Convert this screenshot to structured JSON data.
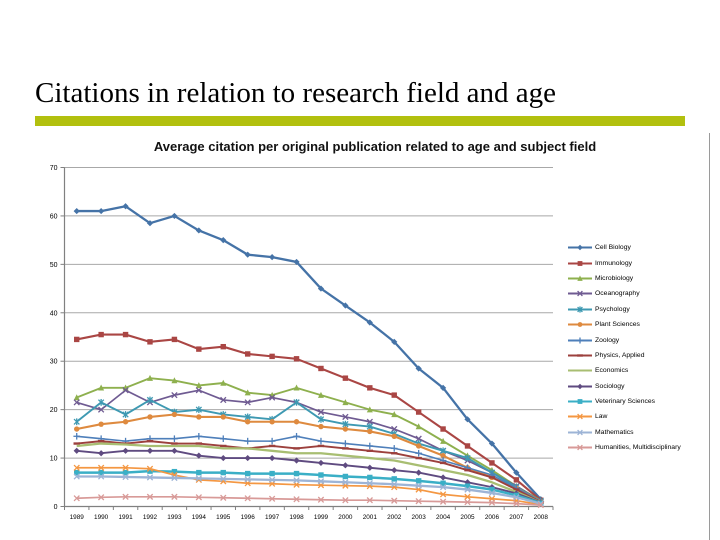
{
  "slide": {
    "title": "Citations in relation to research field and age",
    "accent_bar_color": "#B2C00E"
  },
  "chart_data": {
    "type": "line",
    "title": "Average citation per original publication related to age and subject field",
    "xlabel": "",
    "ylabel": "",
    "x": [
      1989,
      1990,
      1991,
      1992,
      1993,
      1994,
      1995,
      1996,
      1997,
      1998,
      1999,
      2000,
      2001,
      2002,
      2003,
      2004,
      2005,
      2006,
      2007,
      2008
    ],
    "ylim": [
      0,
      70
    ],
    "ytick_step": 10,
    "grid": true,
    "legend_position": "right",
    "axis_color": "#808080",
    "grid_color": "#A8A8A8",
    "series": [
      {
        "name": "Cell Biology",
        "color": "#4573A7",
        "marker": "diamond",
        "values": [
          61,
          61,
          62,
          58.5,
          60,
          57,
          55,
          52,
          51.5,
          50.5,
          45,
          41.5,
          38,
          34,
          28.5,
          24.5,
          18,
          13,
          7,
          1.5
        ]
      },
      {
        "name": "Immunology",
        "color": "#AA4644",
        "marker": "square",
        "values": [
          34.5,
          35.5,
          35.5,
          34,
          34.5,
          32.5,
          33,
          31.5,
          31,
          30.5,
          28.5,
          26.5,
          24.5,
          23,
          19.5,
          16,
          12.5,
          9,
          5.5,
          1.3
        ]
      },
      {
        "name": "Microbiology",
        "color": "#8EB04E",
        "marker": "triangle",
        "values": [
          22.5,
          24.5,
          24.5,
          26.5,
          26,
          25,
          25.5,
          23.5,
          23,
          24.5,
          23,
          21.5,
          20,
          19,
          16.5,
          13.5,
          10.5,
          7.5,
          4.2,
          1.2
        ]
      },
      {
        "name": "Oceanography",
        "color": "#6F5B92",
        "marker": "x",
        "values": [
          21.5,
          20,
          24,
          21.5,
          23,
          24,
          22,
          21.5,
          22.5,
          21.5,
          19.5,
          18.5,
          17.5,
          16,
          14,
          11.5,
          9.5,
          7,
          4.2,
          1.1
        ]
      },
      {
        "name": "Psychology",
        "color": "#3E99B2",
        "marker": "asterisk",
        "values": [
          17.5,
          21.5,
          19,
          22,
          19.5,
          20,
          19,
          18.5,
          18,
          21.5,
          18,
          17,
          16.5,
          15,
          13,
          11.5,
          10,
          7,
          4,
          1.1
        ]
      },
      {
        "name": "Plant Sciences",
        "color": "#DE8A3F",
        "marker": "circle",
        "values": [
          16,
          17,
          17.5,
          18.5,
          19,
          18.5,
          18.5,
          17.5,
          17.5,
          17.5,
          16.5,
          16,
          15.5,
          14.5,
          12.5,
          10.5,
          8,
          6,
          3.8,
          1
        ]
      },
      {
        "name": "Zoology",
        "color": "#4E7FBA",
        "marker": "plus",
        "values": [
          14.5,
          14,
          13.5,
          14,
          14,
          14.5,
          14,
          13.5,
          13.5,
          14.5,
          13.5,
          13,
          12.5,
          12,
          11,
          9.5,
          8,
          6.5,
          3.8,
          1
        ]
      },
      {
        "name": "Physics, Applied",
        "color": "#9C403D",
        "marker": "dash",
        "values": [
          13,
          13.5,
          13,
          13.5,
          13,
          13,
          12.5,
          12,
          12.5,
          12,
          12.5,
          12,
          11.5,
          11,
          10,
          9,
          7.5,
          6,
          3.5,
          0.9
        ]
      },
      {
        "name": "Economics",
        "color": "#A8BE72",
        "marker": "none",
        "values": [
          12.5,
          13,
          12.8,
          12.5,
          12.5,
          12.5,
          12,
          12,
          11.5,
          11,
          11,
          10.5,
          10,
          9.5,
          8.5,
          7.5,
          6.5,
          5,
          3,
          0.8
        ]
      },
      {
        "name": "Sociology",
        "color": "#5F4B80",
        "marker": "diamond",
        "values": [
          11.5,
          11,
          11.5,
          11.5,
          11.5,
          10.5,
          10,
          10,
          10,
          9.5,
          9,
          8.5,
          8,
          7.5,
          7,
          6,
          5,
          4,
          2.7,
          0.8
        ]
      },
      {
        "name": "Veterinary Sciences",
        "color": "#3AAFC6",
        "marker": "square",
        "values": [
          7,
          7,
          7,
          7.3,
          7.2,
          7,
          7,
          6.8,
          6.8,
          6.8,
          6.5,
          6.2,
          6,
          5.7,
          5.3,
          4.8,
          4.2,
          3.5,
          2.3,
          0.7
        ]
      },
      {
        "name": "Law",
        "color": "#F49742",
        "marker": "x",
        "values": [
          8,
          8,
          8,
          7.8,
          6.5,
          5.5,
          5.2,
          4.8,
          4.7,
          4.5,
          4.4,
          4.3,
          4.2,
          4,
          3.5,
          2.5,
          2,
          1.6,
          1.2,
          0.4
        ]
      },
      {
        "name": "Mathematics",
        "color": "#9DB4D6",
        "marker": "x",
        "values": [
          6.2,
          6.2,
          6.1,
          6,
          5.9,
          5.8,
          5.7,
          5.6,
          5.5,
          5.4,
          5.2,
          5,
          4.8,
          4.6,
          4.3,
          4,
          3.5,
          2.8,
          1.9,
          0.6
        ]
      },
      {
        "name": "Humanities, Multidisciplinary",
        "color": "#D89A98",
        "marker": "x",
        "values": [
          1.7,
          1.9,
          2,
          2,
          2,
          1.9,
          1.8,
          1.7,
          1.6,
          1.5,
          1.4,
          1.3,
          1.3,
          1.2,
          1.1,
          1,
          0.9,
          0.8,
          0.6,
          0.3
        ]
      }
    ]
  }
}
